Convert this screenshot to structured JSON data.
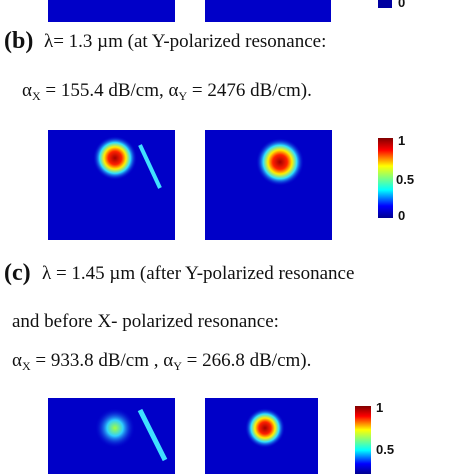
{
  "top_colorbar": {
    "min_label": "0"
  },
  "panel_b": {
    "label": "(b)",
    "line1": "λ= 1.3 µm (at Y-polarized resonance:",
    "line2": [
      "α",
      "X",
      " = 155.4 dB/cm, α",
      "Y",
      " = 2476 dB/cm)."
    ],
    "colorbar": {
      "max_label": "1",
      "mid_label": "0.5",
      "min_label": "0"
    }
  },
  "panel_c": {
    "label": "(c)",
    "line1": "λ = 1.45 µm (after Y-polarized resonance",
    "line2": "and before X- polarized resonance:",
    "line3": [
      "α",
      "X",
      " = 933.8  dB/cm , α",
      "Y",
      " =  266.8  dB/cm)."
    ],
    "colorbar": {
      "max_label": "1",
      "mid_label": "0.5"
    }
  }
}
